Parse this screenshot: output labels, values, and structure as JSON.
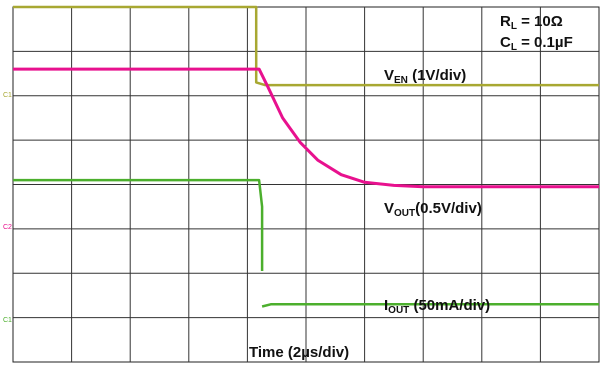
{
  "chart_data": {
    "type": "line",
    "title": "",
    "grid": true,
    "x_divisions": 10,
    "y_divisions": 8,
    "time_scale": {
      "prefix": "Time (2",
      "unit": "s/div)",
      "unit_symbol": "µ"
    },
    "conditions": {
      "rl": {
        "main": "R",
        "sub": "L",
        "value": " = 10",
        "unit_symbol": "Ω"
      },
      "cl": {
        "main": "C",
        "sub": "L",
        "value": " = 0.1",
        "unit_symbol": "µ",
        "unit": "F"
      }
    },
    "series": [
      {
        "name": "VEN",
        "label_main": "V",
        "label_sub": "EN",
        "label_scale": " (1V/div)",
        "marker": "C1",
        "color": "#a8a832",
        "x_div": [
          0,
          4.15,
          4.15,
          4.3,
          10
        ],
        "y_div": [
          8.0,
          8.0,
          6.3,
          6.24,
          6.24
        ]
      },
      {
        "name": "VOUT",
        "label_main": "V",
        "label_sub": "OUT",
        "label_scale": "(0.5V/div)",
        "marker": "",
        "color": "#e8118e",
        "x_div": [
          0,
          4.2,
          4.35,
          4.6,
          4.9,
          5.2,
          5.6,
          6.0,
          6.5,
          7.0,
          8.0,
          10
        ],
        "y_div": [
          6.6,
          6.6,
          6.2,
          5.5,
          4.95,
          4.55,
          4.22,
          4.05,
          3.98,
          3.95,
          3.95,
          3.95
        ]
      },
      {
        "name": "VOUT_C2",
        "label_main": "",
        "label_sub": "",
        "label_scale": "",
        "marker": "C2",
        "color": "#4caf2d",
        "x_div": [
          0,
          4.2,
          4.25,
          4.25
        ],
        "y_div": [
          4.1,
          4.1,
          3.5,
          2.05
        ]
      },
      {
        "name": "IOUT",
        "label_main": "I",
        "label_sub": "OUT",
        "label_scale": " (50mA/div)",
        "marker": "C1",
        "color": "#4caf2d",
        "x_div": [
          4.25,
          4.4,
          10
        ],
        "y_div": [
          1.25,
          1.3,
          1.3
        ]
      }
    ]
  }
}
